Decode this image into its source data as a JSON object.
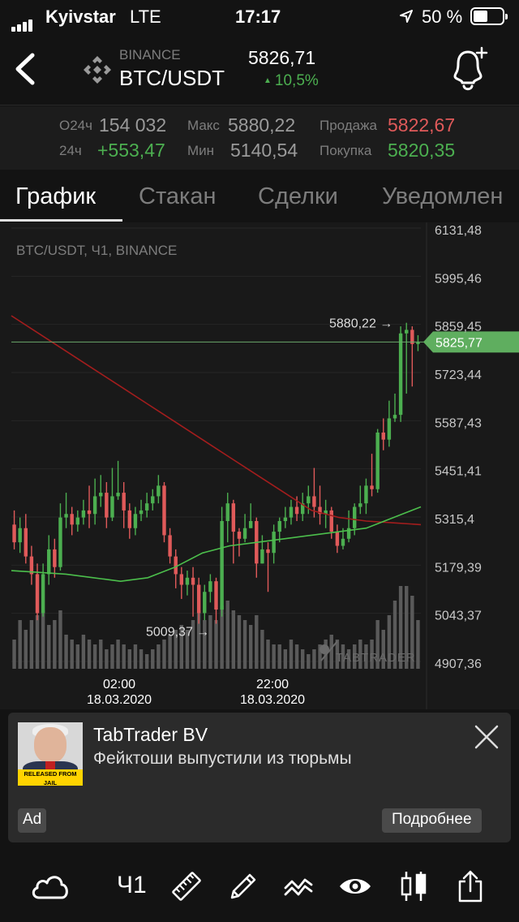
{
  "status_bar": {
    "carrier": "Kyivstar",
    "network": "LTE",
    "time": "17:17",
    "battery": "50 %"
  },
  "header": {
    "exchange": "BINANCE",
    "pair": "BTC/USDT",
    "price": "5826,71",
    "change": "10,5%",
    "change_color": "#4caf50"
  },
  "stats": {
    "volume_label": "О24ч",
    "volume": "154 032",
    "change_label": "24ч",
    "change": "+553,47",
    "max_label": "Макс",
    "max": "5880,22",
    "min_label": "Мин",
    "min": "5140,54",
    "sell_label": "Продажа",
    "sell": "5822,67",
    "buy_label": "Покупка",
    "buy": "5820,35"
  },
  "tabs": [
    {
      "label": "График",
      "active": true
    },
    {
      "label": "Стакан"
    },
    {
      "label": "Сделки"
    },
    {
      "label": "Уведомлен"
    }
  ],
  "chart_data": {
    "type": "candlestick",
    "title": "BTC/USDT, Ч1, BINANCE",
    "watermark": "TABTRADER",
    "y_ticks": [
      "6131,48",
      "5995,46",
      "5859,45",
      "5723,44",
      "5587,43",
      "5451,41",
      "5315,4",
      "5179,39",
      "5043,37",
      "4907,36"
    ],
    "ylim": [
      4907.36,
      6131.48
    ],
    "x_ticks": [
      {
        "time": "02:00",
        "date": "18.03.2020"
      },
      {
        "time": "22:00",
        "date": "18.03.2020"
      }
    ],
    "current_price_label": "5825,77",
    "current_price": 5825.77,
    "high_marker": "5880,22 →",
    "high_value": 5880.22,
    "low_marker": "5009,37 →",
    "low_value": 5009.37,
    "candles": [
      [
        5310,
        5260,
        5350,
        5240
      ],
      [
        5260,
        5300,
        5330,
        5230
      ],
      [
        5300,
        5220,
        5340,
        5200
      ],
      [
        5220,
        5170,
        5250,
        5140
      ],
      [
        5170,
        5060,
        5200,
        5040
      ],
      [
        5060,
        5170,
        5200,
        5050
      ],
      [
        5170,
        5240,
        5280,
        5140
      ],
      [
        5240,
        5190,
        5270,
        5160
      ],
      [
        5190,
        5330,
        5370,
        5180
      ],
      [
        5330,
        5340,
        5400,
        5300
      ],
      [
        5340,
        5310,
        5360,
        5280
      ],
      [
        5310,
        5330,
        5350,
        5290
      ],
      [
        5330,
        5350,
        5380,
        5310
      ],
      [
        5350,
        5340,
        5420,
        5300
      ],
      [
        5340,
        5390,
        5440,
        5310
      ],
      [
        5390,
        5400,
        5450,
        5360
      ],
      [
        5400,
        5330,
        5430,
        5300
      ],
      [
        5330,
        5390,
        5470,
        5320
      ],
      [
        5390,
        5400,
        5490,
        5380
      ],
      [
        5400,
        5350,
        5430,
        5300
      ],
      [
        5350,
        5300,
        5370,
        5270
      ],
      [
        5300,
        5340,
        5360,
        5280
      ],
      [
        5340,
        5350,
        5380,
        5320
      ],
      [
        5350,
        5370,
        5400,
        5330
      ],
      [
        5370,
        5390,
        5410,
        5350
      ],
      [
        5390,
        5420,
        5450,
        5370
      ],
      [
        5420,
        5280,
        5430,
        5260
      ],
      [
        5280,
        5220,
        5300,
        5200
      ],
      [
        5220,
        5170,
        5240,
        5130
      ],
      [
        5170,
        5140,
        5190,
        5100
      ],
      [
        5140,
        5160,
        5180,
        5110
      ],
      [
        5160,
        5140,
        5190,
        5050
      ],
      [
        5140,
        5060,
        5160,
        5030
      ],
      [
        5060,
        5120,
        5140,
        5040
      ],
      [
        5120,
        5150,
        5170,
        5090
      ],
      [
        5150,
        5070,
        5160,
        5030
      ],
      [
        5070,
        5320,
        5360,
        5050
      ],
      [
        5320,
        5370,
        5400,
        5260
      ],
      [
        5370,
        5290,
        5380,
        5200
      ],
      [
        5290,
        5270,
        5300,
        5220
      ],
      [
        5270,
        5300,
        5340,
        5260
      ],
      [
        5300,
        5320,
        5370,
        5300
      ],
      [
        5320,
        5200,
        5330,
        5160
      ],
      [
        5200,
        5240,
        5280,
        5200
      ],
      [
        5240,
        5230,
        5260,
        5120
      ],
      [
        5230,
        5290,
        5310,
        5200
      ],
      [
        5290,
        5320,
        5330,
        5260
      ],
      [
        5320,
        5330,
        5360,
        5300
      ],
      [
        5330,
        5360,
        5380,
        5310
      ],
      [
        5360,
        5340,
        5390,
        5320
      ],
      [
        5340,
        5370,
        5400,
        5320
      ],
      [
        5370,
        5390,
        5420,
        5340
      ],
      [
        5390,
        5360,
        5470,
        5330
      ],
      [
        5360,
        5340,
        5420,
        5310
      ],
      [
        5340,
        5350,
        5380,
        5300
      ],
      [
        5350,
        5290,
        5360,
        5270
      ],
      [
        5290,
        5250,
        5310,
        5230
      ],
      [
        5250,
        5270,
        5300,
        5240
      ],
      [
        5270,
        5300,
        5350,
        5260
      ],
      [
        5300,
        5360,
        5370,
        5280
      ],
      [
        5360,
        5370,
        5420,
        5340
      ],
      [
        5370,
        5420,
        5440,
        5340
      ],
      [
        5420,
        5410,
        5510,
        5390
      ],
      [
        5410,
        5570,
        5580,
        5400
      ],
      [
        5570,
        5550,
        5610,
        5520
      ],
      [
        5550,
        5610,
        5660,
        5530
      ],
      [
        5610,
        5620,
        5680,
        5600
      ],
      [
        5620,
        5850,
        5870,
        5600
      ],
      [
        5850,
        5860,
        5880,
        5680
      ],
      [
        5860,
        5820,
        5870,
        5700
      ],
      [
        5820,
        5825,
        5845,
        5800
      ]
    ],
    "volumes": [
      0.3,
      0.5,
      0.4,
      0.5,
      0.55,
      0.6,
      0.45,
      0.5,
      0.6,
      0.35,
      0.3,
      0.25,
      0.35,
      0.3,
      0.25,
      0.3,
      0.2,
      0.25,
      0.3,
      0.25,
      0.2,
      0.25,
      0.2,
      0.15,
      0.2,
      0.25,
      0.3,
      0.35,
      0.4,
      0.45,
      0.4,
      0.5,
      0.6,
      0.5,
      0.55,
      0.5,
      0.65,
      0.7,
      0.6,
      0.55,
      0.5,
      0.45,
      0.55,
      0.4,
      0.3,
      0.25,
      0.25,
      0.2,
      0.3,
      0.25,
      0.2,
      0.15,
      0.2,
      0.25,
      0.3,
      0.35,
      0.3,
      0.25,
      0.2,
      0.25,
      0.3,
      0.25,
      0.3,
      0.5,
      0.4,
      0.55,
      0.7,
      0.85,
      0.85,
      0.75,
      0.5
    ],
    "ma_long": [
      5900,
      5850,
      5800,
      5750,
      5700,
      5650,
      5600,
      5550,
      5500,
      5450,
      5400,
      5350,
      5330,
      5320,
      5315,
      5310
    ],
    "ma_short": [
      5180,
      5175,
      5170,
      5160,
      5150,
      5160,
      5190,
      5230,
      5250,
      5260,
      5270,
      5280,
      5290,
      5300,
      5330,
      5360
    ],
    "colors": {
      "up": "#4caf50",
      "down": "#e05a5a",
      "ma_long": "#a31d1d",
      "ma_short": "#4cbf4c"
    }
  },
  "ad": {
    "title": "TabTrader BV",
    "text": "Фейктоши выпустили из тюрьмы",
    "image_caption": "RELEASED FROM JAIL",
    "badge": "Ad",
    "button": "Подробнее"
  },
  "toolbar": {
    "timeframe": "Ч1",
    "icons": [
      "cloud-icon",
      "ruler-icon",
      "pencil-icon",
      "indicators-icon",
      "eye-icon",
      "candles-icon",
      "share-icon"
    ]
  }
}
